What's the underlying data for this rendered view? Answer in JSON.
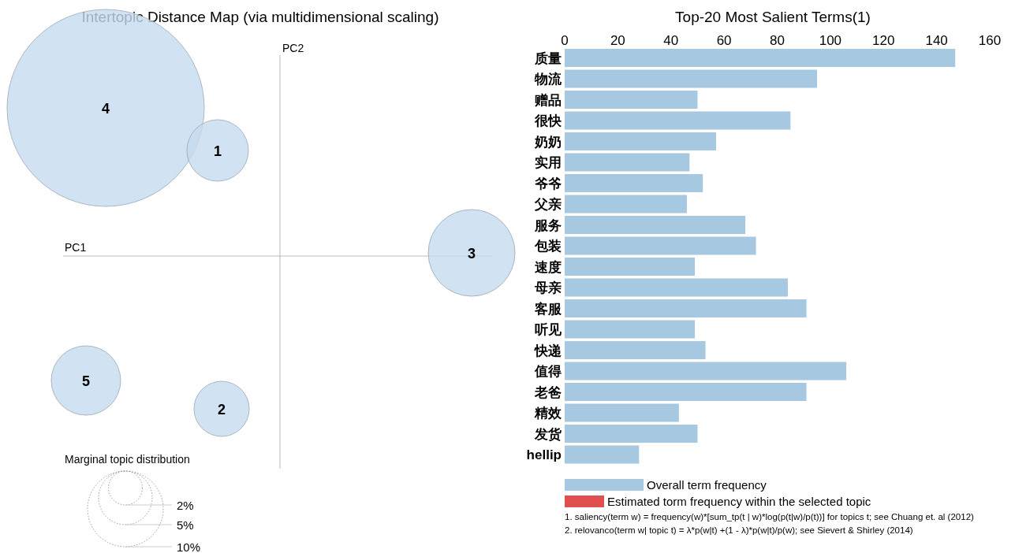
{
  "chart_data": [
    {
      "type": "other",
      "title": "Intertopic Distance Map (via multidimensional scaling)",
      "xlabel": "PC1",
      "ylabel": "PC2",
      "legend_title": "Marginal topic distribution",
      "annotations": [
        "4",
        "1",
        "3",
        "5",
        "2",
        "2%",
        "5%",
        "10%"
      ]
    },
    {
      "type": "bar",
      "orientation": "horizontal",
      "title": "Top-20 Most Salient Terms(1)",
      "xlim": [
        0,
        160
      ],
      "xticks": [
        0,
        20,
        40,
        60,
        80,
        100,
        120,
        140,
        160
      ],
      "legend": "bottom",
      "categories": [
        "质量",
        "物流",
        "赠品",
        "很快",
        "奶奶",
        "实用",
        "爷爷",
        "父亲",
        "服务",
        "包装",
        "速度",
        "母亲",
        "客服",
        "听见",
        "快递",
        "值得",
        "老爸",
        "精效",
        "发货",
        "hellip"
      ],
      "series": [
        {
          "name": "Overall term frequency",
          "color": "#a6c8e0",
          "values": [
            147,
            95,
            50,
            85,
            57,
            47,
            52,
            46,
            68,
            72,
            49,
            84,
            91,
            49,
            53,
            106,
            91,
            43,
            50,
            28
          ]
        },
        {
          "name": "Estimated torm frequency within the selected topic",
          "color": "#e05050",
          "values": [
            null,
            null,
            null,
            null,
            null,
            null,
            null,
            null,
            null,
            null,
            null,
            null,
            null,
            null,
            null,
            null,
            null,
            null,
            null,
            null
          ]
        }
      ],
      "annotations": [
        "1. saliency(term w) = frequency(w)*[sum_tp(t | w)*log(p(t|w)/p(t))] for topics t; see Chuang et. al (2012)",
        "2. relovanco(term w| topic t) = λ*p(w|t) +(1 - λ)*p(w|t)/p(w); see Sievert & Shirley (2014)"
      ]
    }
  ]
}
